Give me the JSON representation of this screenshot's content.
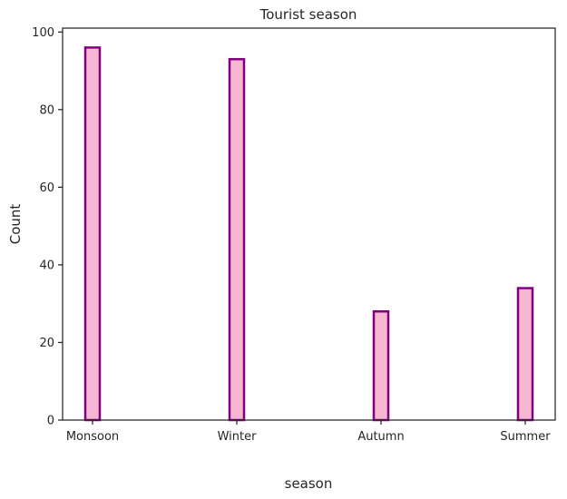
{
  "chart_data": {
    "type": "bar",
    "title": "Tourist season",
    "xlabel": "season",
    "ylabel": "Count",
    "categories": [
      "Monsoon",
      "Winter",
      "Autumn",
      "Summer"
    ],
    "values": [
      96,
      93,
      28,
      34
    ],
    "ylim": [
      0,
      101
    ],
    "yticks": [
      0,
      20,
      40,
      60,
      80,
      100
    ],
    "grid": false,
    "legend": "none",
    "bar_fill": "#f7b6d2",
    "bar_edge": "#800080",
    "axis_color": "#262626"
  }
}
